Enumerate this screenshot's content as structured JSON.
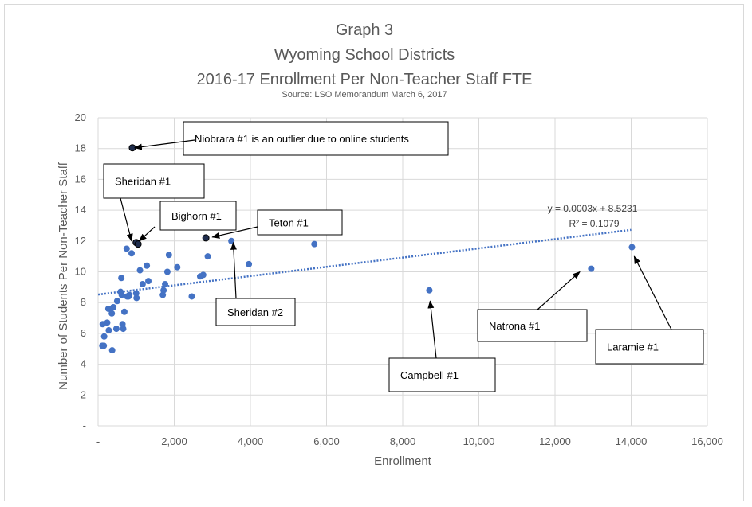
{
  "chart_data": {
    "type": "scatter",
    "title_lines": [
      "Graph 3",
      "Wyoming  School Districts",
      "2016-17 Enrollment  Per Non-Teacher Staff FTE"
    ],
    "subtitle": "Source: LSO Memorandum March 6, 2017",
    "xlabel": "Enrollment",
    "ylabel": "Number of Students Per Non-Teacher Staff",
    "xlim": [
      0,
      16000
    ],
    "ylim": [
      0,
      20
    ],
    "x_ticks": [
      0,
      2000,
      4000,
      6000,
      8000,
      10000,
      12000,
      14000,
      16000
    ],
    "x_tick_labels": [
      "-",
      "2,000",
      "4,000",
      "6,000",
      "8,000",
      "10,000",
      "12,000",
      "14,000",
      "16,000"
    ],
    "y_ticks": [
      0,
      2,
      4,
      6,
      8,
      10,
      12,
      14,
      16,
      18,
      20
    ],
    "y_tick_labels": [
      "-",
      "2",
      "4",
      "6",
      "8",
      "10",
      "12",
      "14",
      "16",
      "18",
      "20"
    ],
    "grid": true,
    "marker_color": "#4472c4",
    "highlight_color": "#1f2d4d",
    "trendline_color": "#4472c4",
    "points": [
      {
        "x": 150,
        "y": 5.2
      },
      {
        "x": 110,
        "y": 5.2
      },
      {
        "x": 160,
        "y": 5.8
      },
      {
        "x": 120,
        "y": 6.6
      },
      {
        "x": 240,
        "y": 6.7
      },
      {
        "x": 280,
        "y": 6.2
      },
      {
        "x": 270,
        "y": 7.6
      },
      {
        "x": 360,
        "y": 7.3
      },
      {
        "x": 400,
        "y": 7.7
      },
      {
        "x": 370,
        "y": 4.9
      },
      {
        "x": 480,
        "y": 6.3
      },
      {
        "x": 500,
        "y": 8.1
      },
      {
        "x": 590,
        "y": 8.7
      },
      {
        "x": 620,
        "y": 8.5
      },
      {
        "x": 610,
        "y": 9.6
      },
      {
        "x": 640,
        "y": 6.6
      },
      {
        "x": 660,
        "y": 6.3
      },
      {
        "x": 690,
        "y": 7.4
      },
      {
        "x": 760,
        "y": 8.4
      },
      {
        "x": 800,
        "y": 8.4
      },
      {
        "x": 820,
        "y": 8.5
      },
      {
        "x": 750,
        "y": 11.5
      },
      {
        "x": 880,
        "y": 11.2
      },
      {
        "x": 1000,
        "y": 8.6
      },
      {
        "x": 1010,
        "y": 8.3
      },
      {
        "x": 1100,
        "y": 10.1
      },
      {
        "x": 1170,
        "y": 9.2
      },
      {
        "x": 1280,
        "y": 10.4
      },
      {
        "x": 1320,
        "y": 9.4
      },
      {
        "x": 1700,
        "y": 8.5
      },
      {
        "x": 1720,
        "y": 8.8
      },
      {
        "x": 1760,
        "y": 9.2
      },
      {
        "x": 1820,
        "y": 10.0
      },
      {
        "x": 1860,
        "y": 11.1
      },
      {
        "x": 2080,
        "y": 10.3
      },
      {
        "x": 2460,
        "y": 8.4
      },
      {
        "x": 2680,
        "y": 9.7
      },
      {
        "x": 2760,
        "y": 9.8
      },
      {
        "x": 2880,
        "y": 11.0
      },
      {
        "x": 3500,
        "y": 12.0
      },
      {
        "x": 3960,
        "y": 10.5
      },
      {
        "x": 5680,
        "y": 11.8
      },
      {
        "x": 8700,
        "y": 8.8
      },
      {
        "x": 12950,
        "y": 10.2
      },
      {
        "x": 14020,
        "y": 11.6
      }
    ],
    "highlighted_points": [
      {
        "x": 900,
        "y": 18.05
      },
      {
        "x": 1000,
        "y": 11.9
      },
      {
        "x": 1050,
        "y": 11.8
      },
      {
        "x": 2830,
        "y": 12.2
      }
    ],
    "trendline": {
      "slope": 0.0003,
      "intercept": 8.5231,
      "x_range": [
        0,
        14000
      ]
    },
    "trendline_equation": "y = 0.0003x  + 8.5231",
    "trendline_r2": "R² = 0.1079",
    "annotations": [
      {
        "text": "Niobrara #1  is an outlier due to online students",
        "target": {
          "x": 960,
          "y": 18.05
        }
      },
      {
        "text": "Sheridan #1",
        "target": {
          "x": 880,
          "y": 12.0
        }
      },
      {
        "text": "Bighorn #1",
        "target": {
          "x": 1080,
          "y": 12.0
        }
      },
      {
        "text": "Teton #1",
        "target": {
          "x": 3000,
          "y": 12.25
        }
      },
      {
        "text": "Sheridan #2",
        "target": {
          "x": 3550,
          "y": 11.9
        }
      },
      {
        "text": "Campbell #1",
        "target": {
          "x": 8720,
          "y": 8.1
        }
      },
      {
        "text": "Natrona #1",
        "target": {
          "x": 12650,
          "y": 10.0
        }
      },
      {
        "text": "Laramie #1",
        "target": {
          "x": 14080,
          "y": 11.0
        }
      }
    ]
  }
}
